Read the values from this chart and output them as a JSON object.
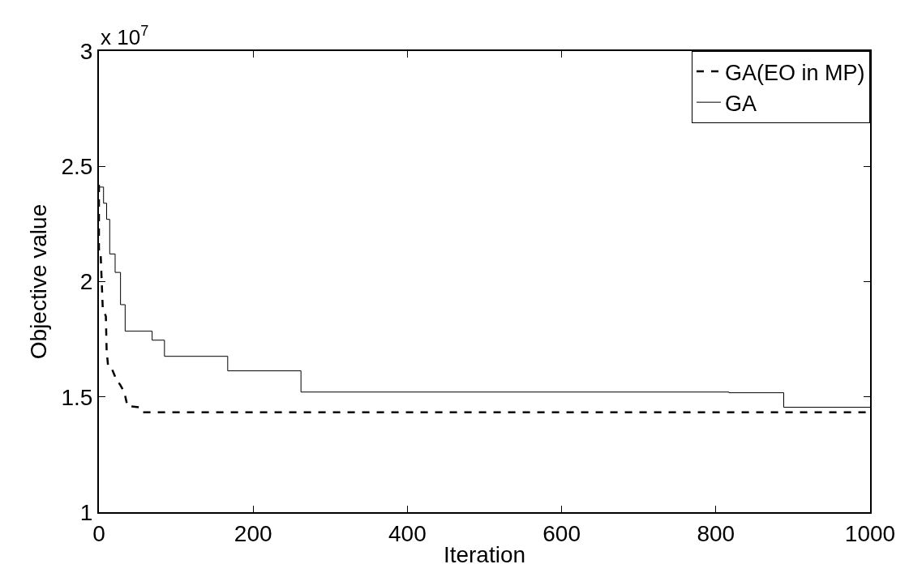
{
  "chart_data": {
    "type": "line",
    "xlabel": "Iteration",
    "ylabel": "Objective value",
    "annotations": [
      "x 10$^{7}$"
    ],
    "xlim": [
      0,
      1000
    ],
    "xticks": [
      0,
      200,
      400,
      600,
      800,
      1000
    ],
    "ylim": [
      1,
      3
    ],
    "yticks": [
      1,
      1.5,
      2,
      2.5,
      3
    ],
    "grid": false,
    "legend": "top right",
    "marker": "none",
    "series": [
      {
        "name": "GA(EO in MP)",
        "color": "#000000",
        "line_style": "dashed",
        "x": [
          0,
          0,
          2,
          5,
          9,
          10,
          12,
          17,
          22,
          28,
          33,
          37,
          53,
          57,
          1000
        ],
        "values": [
          2.42,
          2.14,
          2.14,
          1.88,
          1.85,
          1.7,
          1.63,
          1.62,
          1.58,
          1.55,
          1.52,
          1.46,
          1.455,
          1.433,
          1.433
        ]
      },
      {
        "name": "GA",
        "type": "step",
        "color": "#000000",
        "line_style": "solid",
        "x": [
          0,
          6,
          10,
          14,
          21,
          28,
          34,
          69,
          85,
          167,
          262,
          817,
          888,
          1000
        ],
        "values": [
          2.41,
          2.34,
          2.27,
          2.12,
          2.04,
          1.9,
          1.785,
          1.746,
          1.676,
          1.613,
          1.521,
          1.518,
          1.455,
          1.455
        ]
      }
    ]
  }
}
